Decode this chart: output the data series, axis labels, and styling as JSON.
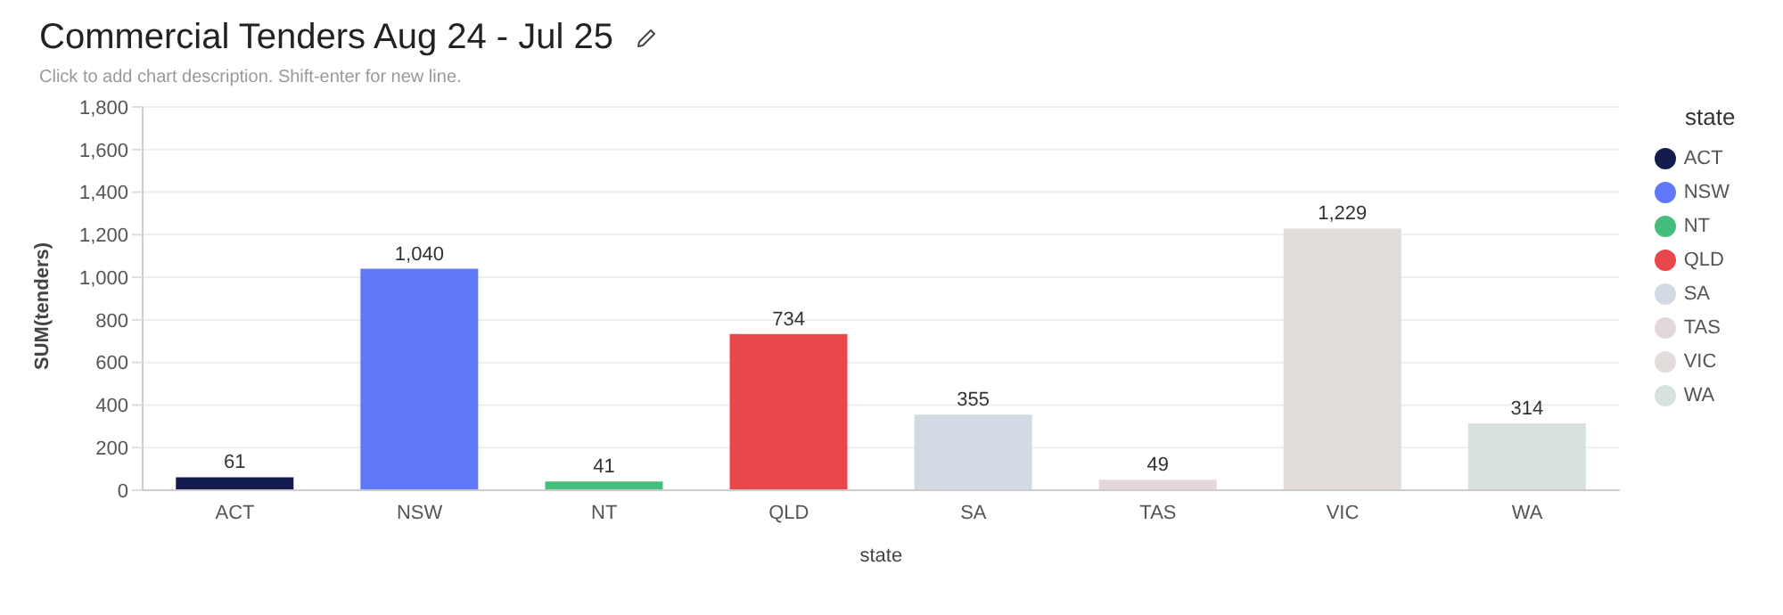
{
  "chart_data": {
    "type": "bar",
    "title": "Commercial Tenders Aug 24 - Jul 25",
    "subtitle": "Click to add chart description. Shift-enter for new line.",
    "xlabel": "state",
    "ylabel": "SUM(tenders)",
    "legend_title": "state",
    "categories": [
      "ACT",
      "NSW",
      "NT",
      "QLD",
      "SA",
      "TAS",
      "VIC",
      "WA"
    ],
    "series": [
      {
        "name": "ACT",
        "color": "#141c4d",
        "values": [
          61,
          null,
          null,
          null,
          null,
          null,
          null,
          null
        ],
        "value_labels": [
          "61",
          null,
          null,
          null,
          null,
          null,
          null,
          null
        ]
      },
      {
        "name": "NSW",
        "color": "#5f78f7",
        "values": [
          null,
          1040,
          null,
          null,
          null,
          null,
          null,
          null
        ],
        "value_labels": [
          null,
          "1,040",
          null,
          null,
          null,
          null,
          null,
          null
        ]
      },
      {
        "name": "NT",
        "color": "#45bd7d",
        "values": [
          null,
          null,
          41,
          null,
          null,
          null,
          null,
          null
        ],
        "value_labels": [
          null,
          null,
          "41",
          null,
          null,
          null,
          null,
          null
        ]
      },
      {
        "name": "QLD",
        "color": "#e8474b",
        "values": [
          null,
          null,
          null,
          734,
          null,
          null,
          null,
          null
        ],
        "value_labels": [
          null,
          null,
          null,
          "734",
          null,
          null,
          null,
          null
        ]
      },
      {
        "name": "SA",
        "color": "#d2dae3",
        "values": [
          null,
          null,
          null,
          null,
          355,
          null,
          null,
          null
        ],
        "value_labels": [
          null,
          null,
          null,
          null,
          "355",
          null,
          null,
          null
        ]
      },
      {
        "name": "TAS",
        "color": "#e3d7d9",
        "values": [
          null,
          null,
          null,
          null,
          null,
          49,
          null,
          null
        ],
        "value_labels": [
          null,
          null,
          null,
          null,
          null,
          "49",
          null,
          null
        ]
      },
      {
        "name": "VIC",
        "color": "#e2ddda",
        "values": [
          null,
          null,
          null,
          null,
          null,
          null,
          1229,
          null
        ],
        "value_labels": [
          null,
          null,
          null,
          null,
          null,
          null,
          "1,229",
          null
        ]
      },
      {
        "name": "WA",
        "color": "#d7e2dd",
        "values": [
          null,
          null,
          null,
          null,
          null,
          null,
          null,
          314
        ],
        "value_labels": [
          null,
          null,
          null,
          null,
          null,
          null,
          null,
          "314"
        ]
      }
    ],
    "stacked": true,
    "ylim": [
      0,
      1800
    ],
    "yticks": [
      0,
      200,
      400,
      600,
      800,
      {
        "value": 1000,
        "label": "1,000"
      },
      {
        "value": 1200,
        "label": "1,200"
      },
      {
        "value": 1400,
        "label": "1,400"
      },
      {
        "value": 1600,
        "label": "1,600"
      },
      {
        "value": 1800,
        "label": "1,800"
      }
    ],
    "grid": "y",
    "legend": "right"
  }
}
